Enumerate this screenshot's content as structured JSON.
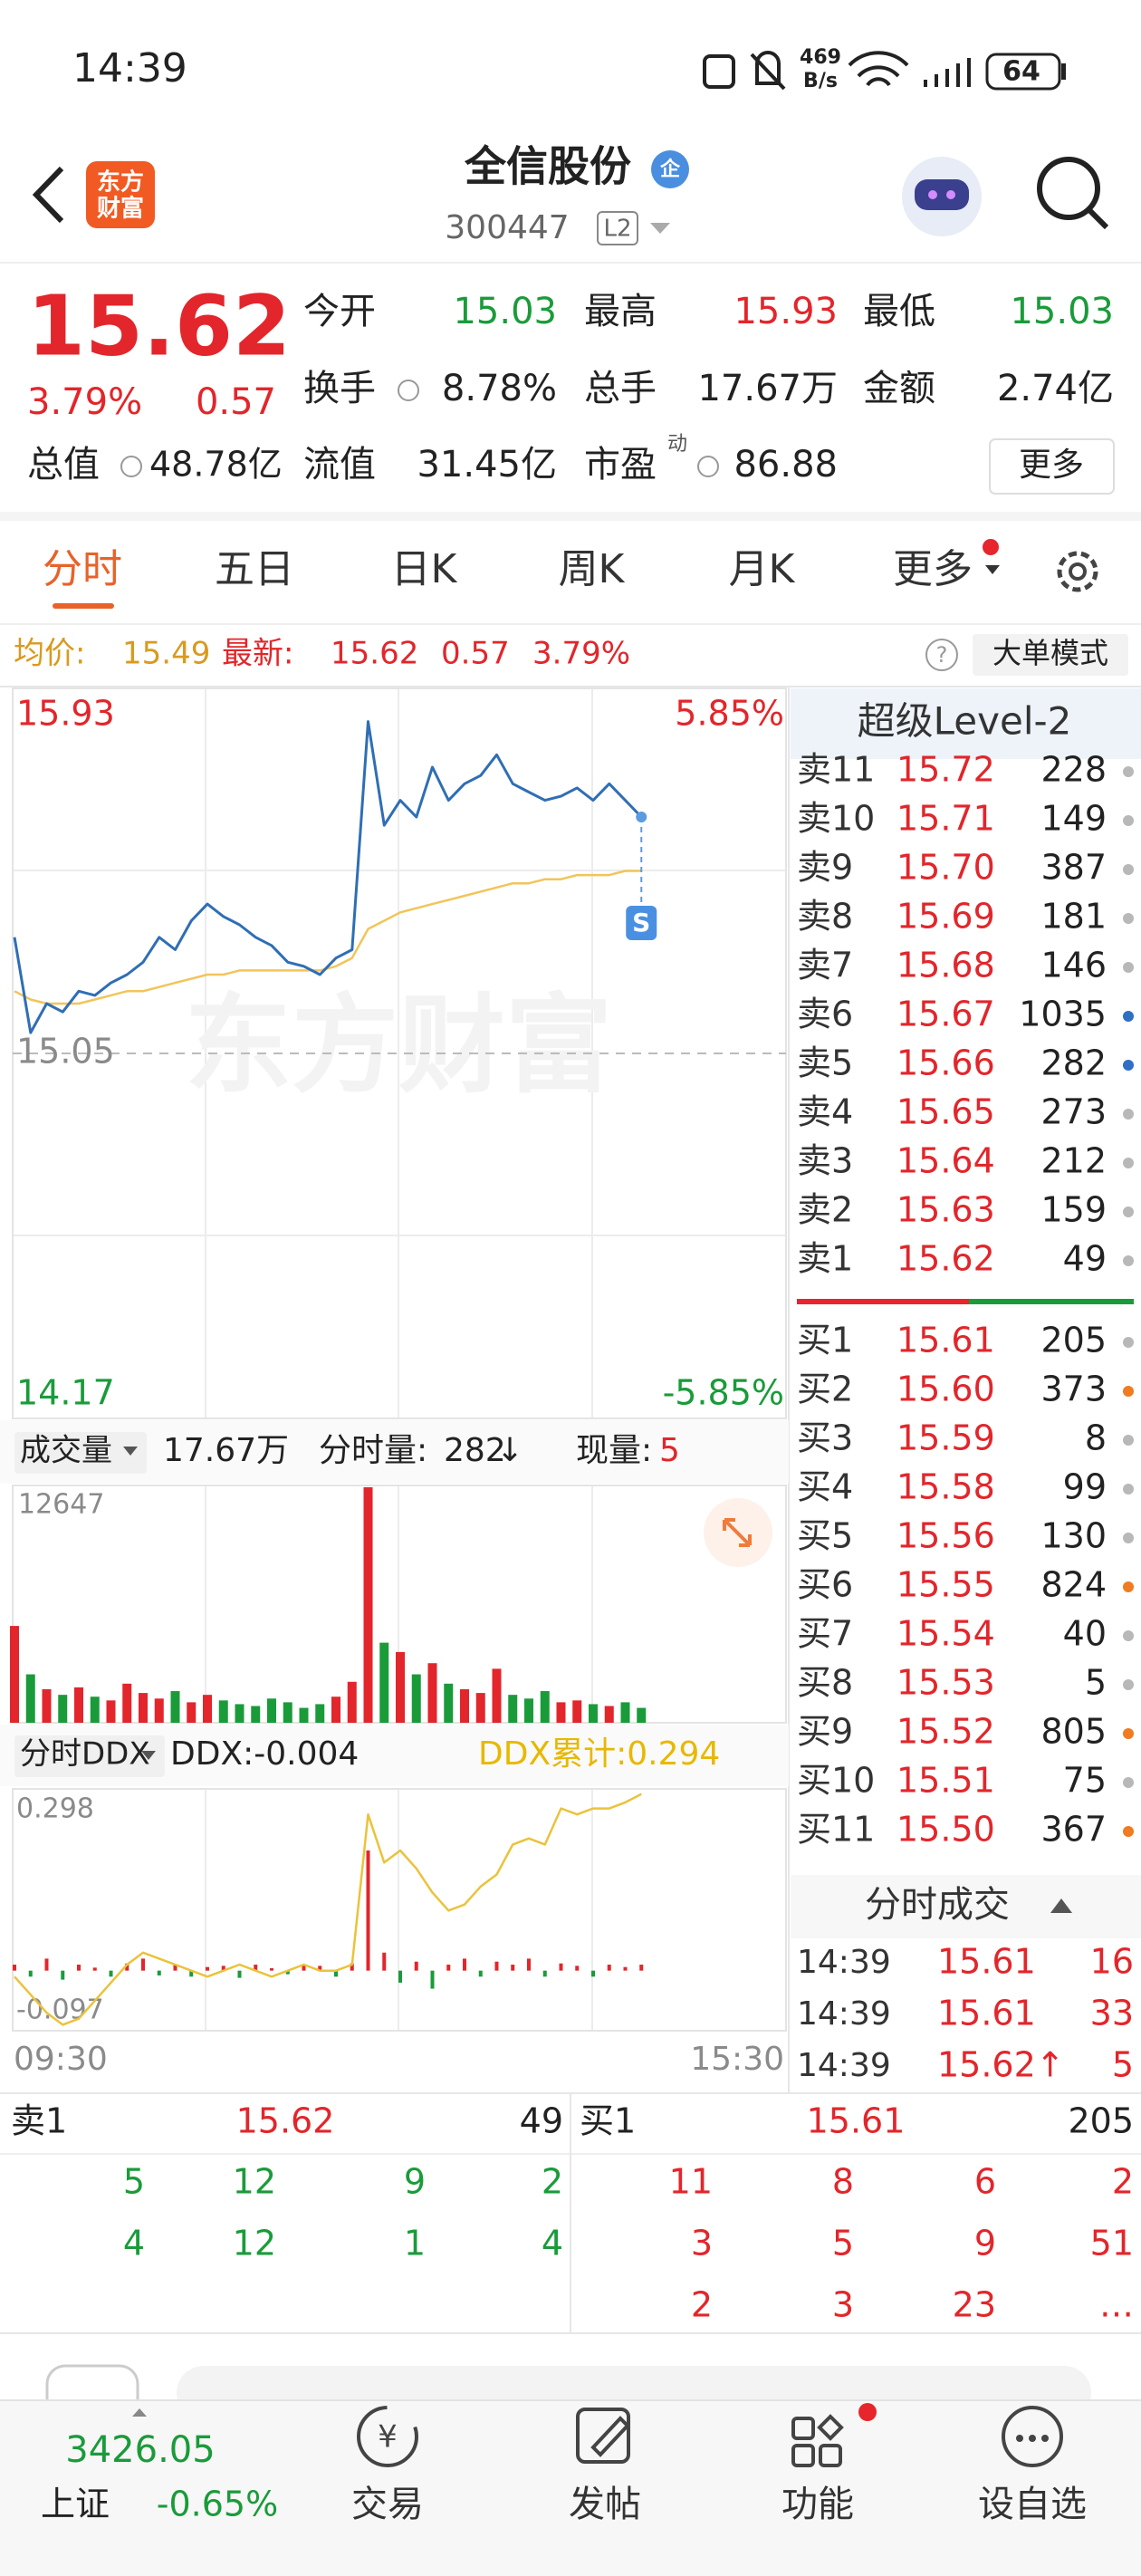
{
  "status_bar": {
    "time": "14:39",
    "net_speed": "469",
    "net_unit": "B/s",
    "battery": "64"
  },
  "header": {
    "logo_top": "东方",
    "logo_bottom": "财富",
    "title": "全信股份",
    "badge": "企",
    "code": "300447",
    "level": "L2"
  },
  "quote": {
    "price": "15.62",
    "change_pct": "3.79%",
    "change": "0.57",
    "total_value": {
      "label": "总值",
      "value": "48.78亿"
    },
    "fields": [
      [
        {
          "label": "今开",
          "value": "15.03",
          "color": "green"
        },
        {
          "label": "最高",
          "value": "15.93",
          "color": "red"
        },
        {
          "label": "最低",
          "value": "15.03",
          "color": "green"
        }
      ],
      [
        {
          "label": "换手",
          "value": "8.78%",
          "color": "dark"
        },
        {
          "label": "总手",
          "value": "17.67万",
          "color": "dark"
        },
        {
          "label": "金额",
          "value": "2.74亿",
          "color": "dark"
        }
      ],
      [
        {
          "label": "流值",
          "value": "31.45亿",
          "color": "dark"
        },
        {
          "label": "市盈",
          "sup": "动",
          "value": "86.88",
          "color": "dark"
        }
      ]
    ],
    "more": "更多"
  },
  "tabs": [
    "分时",
    "五日",
    "日K",
    "周K",
    "月K",
    "更多"
  ],
  "info_bar": {
    "avg_label": "均价:",
    "avg": "15.49",
    "last_label": "最新:",
    "last": "15.62",
    "change": "0.57",
    "change_pct": "3.79%",
    "big_order_mode": "大单模式"
  },
  "price_chart": {
    "ylim": [
      14.17,
      15.93
    ],
    "yticks": [
      15.93,
      15.05,
      14.17
    ],
    "right_labels": [
      "5.85%",
      "-5.85%"
    ],
    "watermark": "东方财富",
    "badge": "S",
    "price": [
      15.33,
      15.1,
      15.17,
      15.15,
      15.2,
      15.19,
      15.22,
      15.24,
      15.27,
      15.33,
      15.3,
      15.37,
      15.41,
      15.38,
      15.36,
      15.33,
      15.31,
      15.27,
      15.26,
      15.24,
      15.28,
      15.3,
      15.85,
      15.6,
      15.66,
      15.62,
      15.74,
      15.66,
      15.7,
      15.72,
      15.77,
      15.7,
      15.68,
      15.66,
      15.67,
      15.69,
      15.66,
      15.7,
      15.66,
      15.62
    ],
    "avg": [
      15.2,
      15.18,
      15.17,
      15.17,
      15.17,
      15.18,
      15.19,
      15.2,
      15.2,
      15.21,
      15.22,
      15.23,
      15.24,
      15.24,
      15.25,
      15.25,
      15.25,
      15.25,
      15.25,
      15.25,
      15.26,
      15.28,
      15.35,
      15.37,
      15.39,
      15.4,
      15.41,
      15.42,
      15.43,
      15.44,
      15.45,
      15.46,
      15.46,
      15.47,
      15.47,
      15.48,
      15.48,
      15.48,
      15.49,
      15.49
    ]
  },
  "volume_chart": {
    "selector": "成交量",
    "total": "17.67万",
    "minute_label": "分时量:",
    "minute_volume": "282",
    "minute_arrow": "↓",
    "current_label": "现量:",
    "current": "5",
    "ylim": [
      0,
      12647
    ],
    "yticks": [
      12647
    ],
    "values": [
      5200,
      2600,
      1800,
      1500,
      1900,
      1400,
      1200,
      2100,
      1600,
      1300,
      1700,
      1100,
      1500,
      1200,
      1000,
      900,
      1300,
      1100,
      800,
      1000,
      1400,
      2200,
      12647,
      4300,
      3800,
      2600,
      3200,
      2100,
      1800,
      1600,
      2900,
      1500,
      1300,
      1700,
      1100,
      1200,
      1000,
      900,
      1100,
      800
    ]
  },
  "ddx_chart": {
    "selector": "分时DDX",
    "ddx": "DDX:-0.004",
    "ddx_total": "DDX累计:0.294",
    "ylim": [
      -0.097,
      0.298
    ],
    "yticks": [
      0.298,
      -0.097
    ],
    "line": [
      -0.01,
      -0.04,
      -0.07,
      -0.09,
      -0.08,
      -0.05,
      -0.02,
      0.01,
      0.03,
      0.02,
      0.01,
      0.0,
      -0.01,
      0.0,
      0.01,
      0.0,
      -0.01,
      0.0,
      0.01,
      0.0,
      0.0,
      0.01,
      0.26,
      0.18,
      0.2,
      0.17,
      0.13,
      0.1,
      0.11,
      0.14,
      0.16,
      0.21,
      0.22,
      0.21,
      0.27,
      0.26,
      0.27,
      0.27,
      0.28,
      0.294
    ],
    "bars": [
      0.01,
      -0.01,
      0.02,
      -0.015,
      0.01,
      0.005,
      -0.01,
      0.012,
      0.02,
      -0.008,
      0.01,
      -0.01,
      0.006,
      0.008,
      -0.012,
      0.01,
      0.004,
      -0.006,
      0.01,
      0.008,
      -0.01,
      0.012,
      0.2,
      0.03,
      -0.02,
      0.015,
      -0.03,
      0.01,
      0.02,
      -0.01,
      0.015,
      0.01,
      0.02,
      -0.01,
      0.012,
      0.008,
      -0.01,
      0.01,
      0.006,
      0.01
    ]
  },
  "time_labels": [
    "09:30",
    "15:30"
  ],
  "order_book": {
    "title": "超级Level-2",
    "asks": [
      {
        "label": "卖11",
        "price": "15.72",
        "volume": "228",
        "dot": "#b8b8b8"
      },
      {
        "label": "卖10",
        "price": "15.71",
        "volume": "149",
        "dot": "#b8b8b8"
      },
      {
        "label": "卖9",
        "price": "15.70",
        "volume": "387",
        "dot": "#b8b8b8"
      },
      {
        "label": "卖8",
        "price": "15.69",
        "volume": "181",
        "dot": "#b8b8b8"
      },
      {
        "label": "卖7",
        "price": "15.68",
        "volume": "146",
        "dot": "#b8b8b8"
      },
      {
        "label": "卖6",
        "price": "15.67",
        "volume": "1035",
        "dot": "#2f6fc4"
      },
      {
        "label": "卖5",
        "price": "15.66",
        "volume": "282",
        "dot": "#2f6fc4"
      },
      {
        "label": "卖4",
        "price": "15.65",
        "volume": "273",
        "dot": "#b8b8b8"
      },
      {
        "label": "卖3",
        "price": "15.64",
        "volume": "212",
        "dot": "#b8b8b8"
      },
      {
        "label": "卖2",
        "price": "15.63",
        "volume": "159",
        "dot": "#b8b8b8"
      },
      {
        "label": "卖1",
        "price": "15.62",
        "volume": "49",
        "dot": "#b8b8b8"
      }
    ],
    "bids": [
      {
        "label": "买1",
        "price": "15.61",
        "volume": "205",
        "dot": "#b8b8b8"
      },
      {
        "label": "买2",
        "price": "15.60",
        "volume": "373",
        "dot": "#f07b20"
      },
      {
        "label": "买3",
        "price": "15.59",
        "volume": "8",
        "dot": "#b8b8b8"
      },
      {
        "label": "买4",
        "price": "15.58",
        "volume": "99",
        "dot": "#b8b8b8"
      },
      {
        "label": "买5",
        "price": "15.56",
        "volume": "130",
        "dot": "#b8b8b8"
      },
      {
        "label": "买6",
        "price": "15.55",
        "volume": "824",
        "dot": "#f07b20"
      },
      {
        "label": "买7",
        "price": "15.54",
        "volume": "40",
        "dot": "#b8b8b8"
      },
      {
        "label": "买8",
        "price": "15.53",
        "volume": "5",
        "dot": "#b8b8b8"
      },
      {
        "label": "买9",
        "price": "15.52",
        "volume": "805",
        "dot": "#f07b20"
      },
      {
        "label": "买10",
        "price": "15.51",
        "volume": "75",
        "dot": "#b8b8b8"
      },
      {
        "label": "买11",
        "price": "15.50",
        "volume": "367",
        "dot": "#f07b20"
      }
    ]
  },
  "trades": {
    "title": "分时成交",
    "rows": [
      {
        "time": "14:39",
        "price": "15.61",
        "volume": "16"
      },
      {
        "time": "14:39",
        "price": "15.61",
        "volume": "33"
      },
      {
        "time": "14:39",
        "price": "15.62↑",
        "volume": "5"
      }
    ]
  },
  "depth_table": {
    "left": {
      "label": "卖1",
      "price": "15.62",
      "volume": "49",
      "rows": [
        [
          "5",
          "12",
          "9",
          "2"
        ],
        [
          "4",
          "12",
          "1",
          "4"
        ]
      ]
    },
    "right": {
      "label": "买1",
      "price": "15.61",
      "volume": "205",
      "rows": [
        [
          "11",
          "8",
          "6",
          "2"
        ],
        [
          "3",
          "5",
          "9",
          "51"
        ],
        [
          "2",
          "3",
          "23",
          "…"
        ]
      ]
    }
  },
  "bottom_nav": {
    "index_value": "3426.05",
    "index_name": "上证",
    "index_change": "-0.65%",
    "items": [
      "交易",
      "发帖",
      "功能",
      "设自选"
    ]
  }
}
